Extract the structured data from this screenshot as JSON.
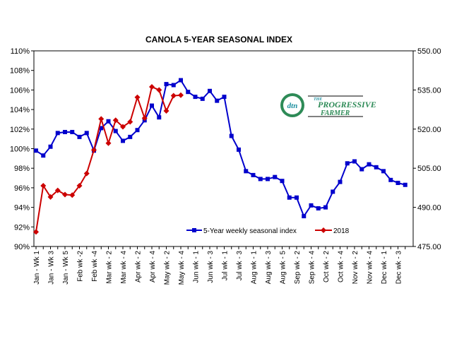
{
  "chart_data": {
    "type": "line",
    "title": "CANOLA 5-YEAR SEASONAL INDEX",
    "xlabel": "",
    "ylabel": "",
    "y_left": {
      "lim": [
        90,
        110
      ],
      "ticks": [
        "90%",
        "92%",
        "94%",
        "96%",
        "98%",
        "100%",
        "102%",
        "104%",
        "106%",
        "108%",
        "110%"
      ]
    },
    "y_right": {
      "lim": [
        475,
        550
      ],
      "ticks": [
        "475.00",
        "490.00",
        "505.00",
        "520.00",
        "535.00",
        "550.00"
      ]
    },
    "x_tick_labels": [
      "Jan - Wk 1",
      "Jan - Wk 3",
      "Jan - Wk 5",
      "Feb wk -2",
      "Feb wk -4",
      "Mar wk - 2",
      "Mar wk - 4",
      "Apr wk - 2",
      "Apr wk - 4",
      "May wk - 2",
      "May wk - 4",
      "Jun wk - 1",
      "Jun wk - 3",
      "Jul wk - 1",
      "Jul wk - 3",
      "Aug wk - 1",
      "Aug wk - 3",
      "Aug wk - 5",
      "Sep wk - 2",
      "Sep wk - 4",
      "Oct wk - 2",
      "Oct wk - 4",
      "Nov wk - 2",
      "Nov wk - 4",
      "Dec wk - 1",
      "Dec wk - 3"
    ],
    "grid": false,
    "legend": "bottom-left",
    "series": [
      {
        "name": "5-Year weekly seasonal index",
        "axis": "left",
        "color": "#0000CC",
        "marker": "square",
        "values": [
          99.8,
          99.3,
          100.2,
          101.6,
          101.7,
          101.7,
          101.2,
          101.6,
          99.8,
          102.1,
          102.8,
          101.8,
          100.8,
          101.2,
          101.9,
          102.9,
          104.4,
          103.2,
          106.6,
          106.5,
          107.0,
          105.8,
          105.3,
          105.1,
          105.9,
          104.9,
          105.3,
          101.3,
          99.9,
          97.7,
          97.3,
          96.9,
          96.9,
          97.1,
          96.7,
          95.0,
          95.0,
          93.1,
          94.2,
          93.9,
          94.0,
          95.6,
          96.6,
          98.5,
          98.7,
          97.9,
          98.4,
          98.1,
          97.7,
          96.8,
          96.5,
          96.3
        ]
      },
      {
        "name": "2018",
        "axis": "right",
        "color": "#CC0000",
        "marker": "diamond",
        "values": [
          480.6,
          498.3,
          494.0,
          496.5,
          494.9,
          494.7,
          498.3,
          503.0,
          512.0,
          523.9,
          514.6,
          523.4,
          520.9,
          522.8,
          532.2,
          524.2,
          536.2,
          535.0,
          527.0,
          532.8,
          533.0
        ]
      }
    ]
  },
  "logo": {
    "mark": "dtn",
    "line1": "THE",
    "line2": "PROGRESSIVE",
    "line3": "FARMER",
    "colors": {
      "green": "#2E8B57",
      "teal": "#1E90A0"
    }
  }
}
